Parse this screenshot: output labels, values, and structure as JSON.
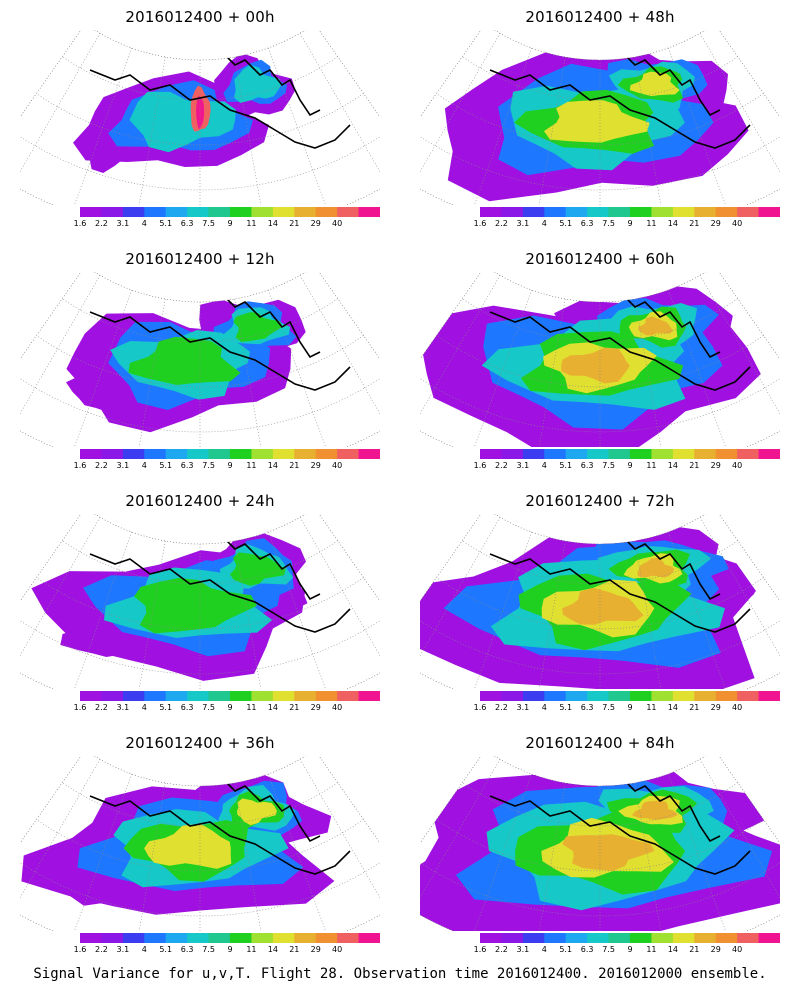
{
  "panels": [
    {
      "title": "2016012400  +  00h",
      "spread": 0.0,
      "peak_hotspot": true
    },
    {
      "title": "2016012400  +  48h",
      "spread": 0.55,
      "peak_hotspot": false
    },
    {
      "title": "2016012400  +  12h",
      "spread": 0.2,
      "peak_hotspot": false
    },
    {
      "title": "2016012400  +  60h",
      "spread": 0.7,
      "peak_hotspot": false
    },
    {
      "title": "2016012400  +  24h",
      "spread": 0.35,
      "peak_hotspot": false
    },
    {
      "title": "2016012400  +  72h",
      "spread": 0.85,
      "peak_hotspot": false
    },
    {
      "title": "2016012400  +  36h",
      "spread": 0.45,
      "peak_hotspot": false
    },
    {
      "title": "2016012400  +  84h",
      "spread": 1.0,
      "peak_hotspot": false
    }
  ],
  "colorbar": {
    "labels": [
      "1.6",
      "2.2",
      "3.1",
      "4",
      "5.1",
      "6.3",
      "7.5",
      "9",
      "11",
      "14",
      "21",
      "29",
      "40"
    ],
    "colors": [
      "#a010e0",
      "#8c18e8",
      "#3c3cf0",
      "#1e78ff",
      "#1ea8f0",
      "#16c8c8",
      "#20c890",
      "#20d020",
      "#a0e030",
      "#e0e030",
      "#e8b030",
      "#f09030",
      "#f06060",
      "#f01490"
    ]
  },
  "footer": "Signal Variance for u,v,T. Flight 28. Observation time 2016012400. 2016012000 ensemble."
}
